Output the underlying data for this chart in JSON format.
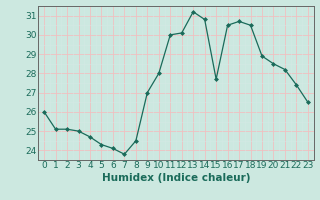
{
  "x": [
    0,
    1,
    2,
    3,
    4,
    5,
    6,
    7,
    8,
    9,
    10,
    11,
    12,
    13,
    14,
    15,
    16,
    17,
    18,
    19,
    20,
    21,
    22,
    23
  ],
  "y": [
    26.0,
    25.1,
    25.1,
    25.0,
    24.7,
    24.3,
    24.1,
    23.8,
    24.5,
    27.0,
    28.0,
    30.0,
    30.1,
    31.2,
    30.8,
    27.7,
    30.5,
    30.7,
    30.5,
    28.9,
    28.5,
    28.2,
    27.4,
    26.5
  ],
  "xlabel": "Humidex (Indice chaleur)",
  "ylim": [
    23.5,
    31.5
  ],
  "yticks": [
    24,
    25,
    26,
    27,
    28,
    29,
    30,
    31
  ],
  "xticks": [
    0,
    1,
    2,
    3,
    4,
    5,
    6,
    7,
    8,
    9,
    10,
    11,
    12,
    13,
    14,
    15,
    16,
    17,
    18,
    19,
    20,
    21,
    22,
    23
  ],
  "line_color": "#1a6b5a",
  "marker_color": "#1a6b5a",
  "bg_color": "#cce8e0",
  "grid_major_color": "#f0c0c0",
  "grid_minor_color": "#d4e8e4",
  "border_color": "#666666",
  "xlabel_fontsize": 7.5,
  "tick_fontsize": 6.5
}
